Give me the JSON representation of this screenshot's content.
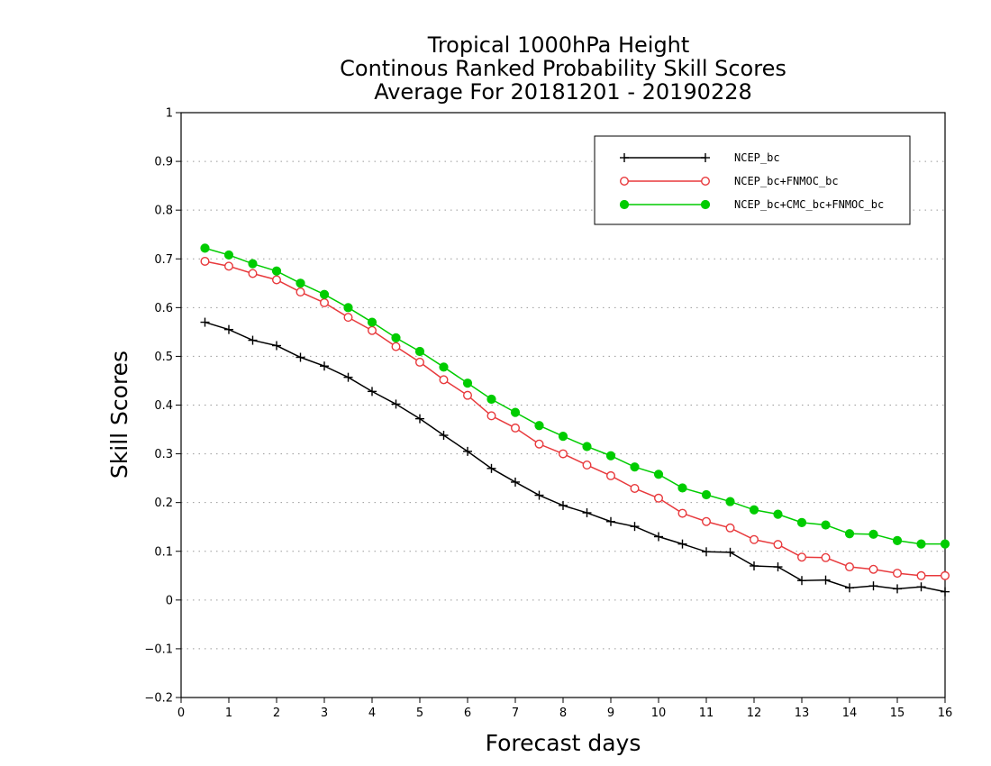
{
  "chart_data": {
    "type": "line",
    "title_lines": [
      "Tropical 1000hPa Height",
      "Continous Ranked Probability Skill Scores",
      "Average For 20181201 - 20190228"
    ],
    "xlabel": "Forecast days",
    "ylabel": "Skill Scores",
    "xlim": [
      0,
      16
    ],
    "ylim": [
      -0.2,
      1
    ],
    "x_ticks": [
      "0",
      "1",
      "2",
      "3",
      "4",
      "5",
      "6",
      "7",
      "8",
      "9",
      "10",
      "11",
      "12",
      "13",
      "14",
      "15",
      "16"
    ],
    "y_ticks": [
      "-0.2",
      "-0.1",
      "0",
      "0.1",
      "0.2",
      "0.3",
      "0.4",
      "0.5",
      "0.6",
      "0.7",
      "0.8",
      "0.9",
      "1"
    ],
    "grid": true,
    "legend_position": "top-right",
    "x": [
      0.5,
      1,
      1.5,
      2,
      2.5,
      3,
      3.5,
      4,
      4.5,
      5,
      5.5,
      6,
      6.5,
      7,
      7.5,
      8,
      8.5,
      9,
      9.5,
      10,
      10.5,
      11,
      11.5,
      12,
      12.5,
      13,
      13.5,
      14,
      14.5,
      15,
      15.5,
      16
    ],
    "series": [
      {
        "name": "NCEP_bc",
        "color": "#000000",
        "marker": "plus",
        "values": [
          0.57,
          0.555,
          0.533,
          0.522,
          0.498,
          0.48,
          0.457,
          0.428,
          0.402,
          0.372,
          0.338,
          0.305,
          0.27,
          0.242,
          0.215,
          0.194,
          0.179,
          0.161,
          0.151,
          0.13,
          0.115,
          0.099,
          0.098,
          0.07,
          0.068,
          0.04,
          0.041,
          0.025,
          0.029,
          0.023,
          0.027,
          0.017
        ]
      },
      {
        "name": "NCEP_bc+FNMOC_bc",
        "color": "#e8393c",
        "marker": "open-circle",
        "values": [
          0.695,
          0.685,
          0.67,
          0.657,
          0.632,
          0.61,
          0.58,
          0.553,
          0.52,
          0.488,
          0.452,
          0.42,
          0.378,
          0.353,
          0.32,
          0.3,
          0.277,
          0.255,
          0.229,
          0.209,
          0.178,
          0.161,
          0.148,
          0.124,
          0.114,
          0.088,
          0.087,
          0.068,
          0.063,
          0.055,
          0.05,
          0.05
        ]
      },
      {
        "name": "NCEP_bc+CMC_bc+FNMOC_bc",
        "color": "#00cc00",
        "marker": "filled-circle",
        "values": [
          0.722,
          0.708,
          0.69,
          0.675,
          0.65,
          0.627,
          0.6,
          0.57,
          0.538,
          0.51,
          0.478,
          0.445,
          0.412,
          0.385,
          0.358,
          0.336,
          0.315,
          0.296,
          0.273,
          0.258,
          0.23,
          0.216,
          0.202,
          0.185,
          0.176,
          0.159,
          0.154,
          0.136,
          0.135,
          0.122,
          0.115,
          0.115
        ]
      }
    ]
  }
}
